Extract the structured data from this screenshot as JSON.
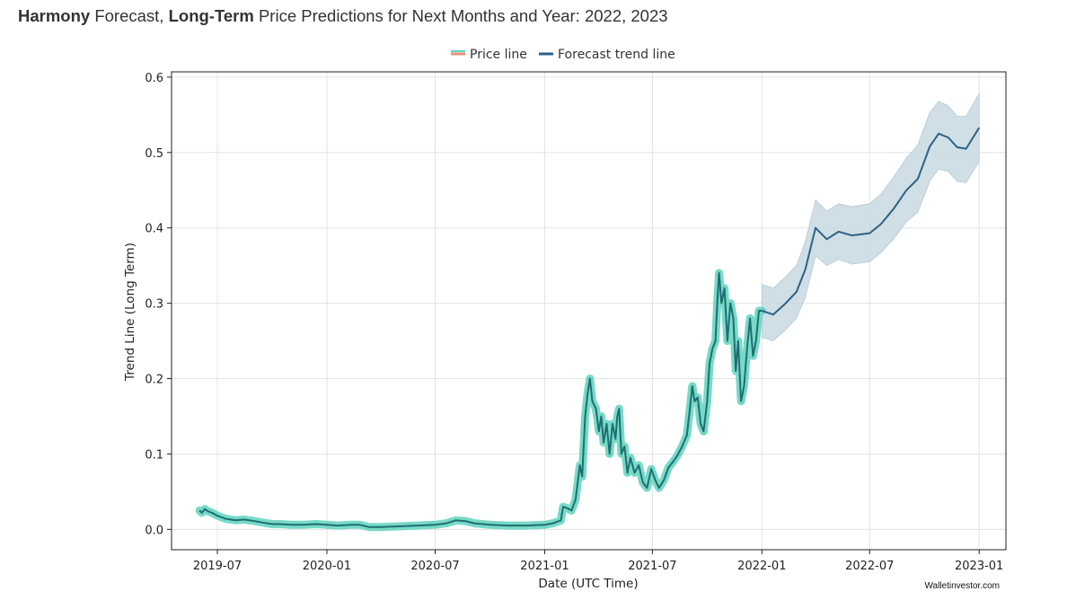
{
  "title": {
    "part1_bold": "Harmony",
    "part2": " Forecast, ",
    "part3_bold": "Long-Term",
    "part4": " Price Predictions for Next Months and Year: 2022, 2023"
  },
  "credit": "Walletinvestor.com",
  "colors": {
    "price_line": "#1f6e73",
    "price_glow": "#5fd4bd",
    "price_legend": "#e8927c",
    "forecast_line": "#2c6288",
    "forecast_band": "#c8d8e2",
    "grid": "#e3e3e3"
  },
  "chart_data": {
    "type": "line",
    "title": "",
    "xlabel": "Date (UTC Time)",
    "ylabel": "Trend Line (Long Term)",
    "xlim": [
      "2019-04-15",
      "2023-02-15"
    ],
    "ylim": [
      -0.027,
      0.607
    ],
    "x_ticks": [
      "2019-07",
      "2020-01",
      "2020-07",
      "2021-01",
      "2021-07",
      "2022-01",
      "2022-07",
      "2023-01"
    ],
    "x_tick_dates": [
      "2019-07-01",
      "2020-01-01",
      "2020-07-01",
      "2021-01-01",
      "2021-07-01",
      "2022-01-01",
      "2022-07-01",
      "2023-01-01"
    ],
    "y_ticks": [
      0.0,
      0.1,
      0.2,
      0.3,
      0.4,
      0.5,
      0.6
    ],
    "y_tick_labels": [
      "0.0",
      "0.1",
      "0.2",
      "0.3",
      "0.4",
      "0.5",
      "0.6"
    ],
    "grid": true,
    "legend": "top-center",
    "series": [
      {
        "name": "Price line",
        "points": [
          [
            "2019-06-01",
            0.025
          ],
          [
            "2019-06-05",
            0.022
          ],
          [
            "2019-06-10",
            0.027
          ],
          [
            "2019-06-15",
            0.024
          ],
          [
            "2019-06-22",
            0.022
          ],
          [
            "2019-07-01",
            0.018
          ],
          [
            "2019-07-15",
            0.014
          ],
          [
            "2019-08-01",
            0.012
          ],
          [
            "2019-08-15",
            0.013
          ],
          [
            "2019-09-01",
            0.011
          ],
          [
            "2019-09-15",
            0.009
          ],
          [
            "2019-10-01",
            0.007
          ],
          [
            "2019-10-15",
            0.007
          ],
          [
            "2019-11-01",
            0.006
          ],
          [
            "2019-11-20",
            0.006
          ],
          [
            "2019-12-15",
            0.007
          ],
          [
            "2020-01-01",
            0.006
          ],
          [
            "2020-01-20",
            0.005
          ],
          [
            "2020-02-10",
            0.006
          ],
          [
            "2020-02-25",
            0.006
          ],
          [
            "2020-03-12",
            0.003
          ],
          [
            "2020-04-01",
            0.003
          ],
          [
            "2020-05-01",
            0.004
          ],
          [
            "2020-06-01",
            0.005
          ],
          [
            "2020-07-01",
            0.006
          ],
          [
            "2020-07-20",
            0.008
          ],
          [
            "2020-08-05",
            0.012
          ],
          [
            "2020-08-20",
            0.011
          ],
          [
            "2020-09-05",
            0.008
          ],
          [
            "2020-10-01",
            0.006
          ],
          [
            "2020-11-01",
            0.005
          ],
          [
            "2020-12-01",
            0.005
          ],
          [
            "2021-01-01",
            0.006
          ],
          [
            "2021-01-15",
            0.008
          ],
          [
            "2021-01-28",
            0.012
          ],
          [
            "2021-02-01",
            0.03
          ],
          [
            "2021-02-08",
            0.028
          ],
          [
            "2021-02-15",
            0.025
          ],
          [
            "2021-02-22",
            0.04
          ],
          [
            "2021-03-01",
            0.085
          ],
          [
            "2021-03-05",
            0.07
          ],
          [
            "2021-03-10",
            0.15
          ],
          [
            "2021-03-14",
            0.18
          ],
          [
            "2021-03-18",
            0.2
          ],
          [
            "2021-03-22",
            0.17
          ],
          [
            "2021-03-28",
            0.16
          ],
          [
            "2021-04-02",
            0.13
          ],
          [
            "2021-04-06",
            0.15
          ],
          [
            "2021-04-10",
            0.115
          ],
          [
            "2021-04-15",
            0.14
          ],
          [
            "2021-04-20",
            0.1
          ],
          [
            "2021-04-25",
            0.14
          ],
          [
            "2021-04-30",
            0.12
          ],
          [
            "2021-05-03",
            0.15
          ],
          [
            "2021-05-06",
            0.16
          ],
          [
            "2021-05-10",
            0.1
          ],
          [
            "2021-05-15",
            0.11
          ],
          [
            "2021-05-20",
            0.075
          ],
          [
            "2021-05-25",
            0.095
          ],
          [
            "2021-06-01",
            0.075
          ],
          [
            "2021-06-08",
            0.085
          ],
          [
            "2021-06-15",
            0.062
          ],
          [
            "2021-06-22",
            0.055
          ],
          [
            "2021-06-29",
            0.08
          ],
          [
            "2021-07-06",
            0.065
          ],
          [
            "2021-07-12",
            0.055
          ],
          [
            "2021-07-20",
            0.065
          ],
          [
            "2021-07-28",
            0.082
          ],
          [
            "2021-08-05",
            0.09
          ],
          [
            "2021-08-12",
            0.098
          ],
          [
            "2021-08-20",
            0.11
          ],
          [
            "2021-08-28",
            0.125
          ],
          [
            "2021-09-02",
            0.16
          ],
          [
            "2021-09-06",
            0.19
          ],
          [
            "2021-09-10",
            0.17
          ],
          [
            "2021-09-15",
            0.175
          ],
          [
            "2021-09-20",
            0.14
          ],
          [
            "2021-09-25",
            0.13
          ],
          [
            "2021-10-01",
            0.17
          ],
          [
            "2021-10-05",
            0.22
          ],
          [
            "2021-10-10",
            0.24
          ],
          [
            "2021-10-15",
            0.25
          ],
          [
            "2021-10-18",
            0.3
          ],
          [
            "2021-10-21",
            0.34
          ],
          [
            "2021-10-25",
            0.3
          ],
          [
            "2021-10-30",
            0.32
          ],
          [
            "2021-11-04",
            0.25
          ],
          [
            "2021-11-09",
            0.3
          ],
          [
            "2021-11-14",
            0.28
          ],
          [
            "2021-11-18",
            0.21
          ],
          [
            "2021-11-22",
            0.25
          ],
          [
            "2021-11-27",
            0.17
          ],
          [
            "2021-12-02",
            0.19
          ],
          [
            "2021-12-07",
            0.24
          ],
          [
            "2021-12-12",
            0.28
          ],
          [
            "2021-12-17",
            0.23
          ],
          [
            "2021-12-22",
            0.25
          ],
          [
            "2021-12-27",
            0.29
          ],
          [
            "2022-01-01",
            0.29
          ]
        ]
      },
      {
        "name": "Forecast trend line",
        "points": [
          [
            "2022-01-01",
            0.29
          ],
          [
            "2022-01-20",
            0.285
          ],
          [
            "2022-02-10",
            0.3
          ],
          [
            "2022-02-28",
            0.315
          ],
          [
            "2022-03-15",
            0.345
          ],
          [
            "2022-04-01",
            0.4
          ],
          [
            "2022-04-20",
            0.385
          ],
          [
            "2022-05-10",
            0.395
          ],
          [
            "2022-06-01",
            0.39
          ],
          [
            "2022-07-01",
            0.393
          ],
          [
            "2022-07-20",
            0.405
          ],
          [
            "2022-08-10",
            0.425
          ],
          [
            "2022-09-01",
            0.45
          ],
          [
            "2022-09-20",
            0.465
          ],
          [
            "2022-10-10",
            0.508
          ],
          [
            "2022-10-25",
            0.525
          ],
          [
            "2022-11-10",
            0.52
          ],
          [
            "2022-11-25",
            0.507
          ],
          [
            "2022-12-10",
            0.505
          ],
          [
            "2023-01-01",
            0.533
          ]
        ],
        "upper": [
          0.325,
          0.32,
          0.335,
          0.35,
          0.382,
          0.437,
          0.422,
          0.432,
          0.428,
          0.432,
          0.445,
          0.467,
          0.493,
          0.51,
          0.553,
          0.568,
          0.562,
          0.548,
          0.548,
          0.578
        ],
        "lower": [
          0.255,
          0.25,
          0.265,
          0.28,
          0.308,
          0.363,
          0.35,
          0.358,
          0.352,
          0.355,
          0.367,
          0.385,
          0.408,
          0.421,
          0.462,
          0.478,
          0.475,
          0.462,
          0.46,
          0.488
        ]
      }
    ]
  }
}
